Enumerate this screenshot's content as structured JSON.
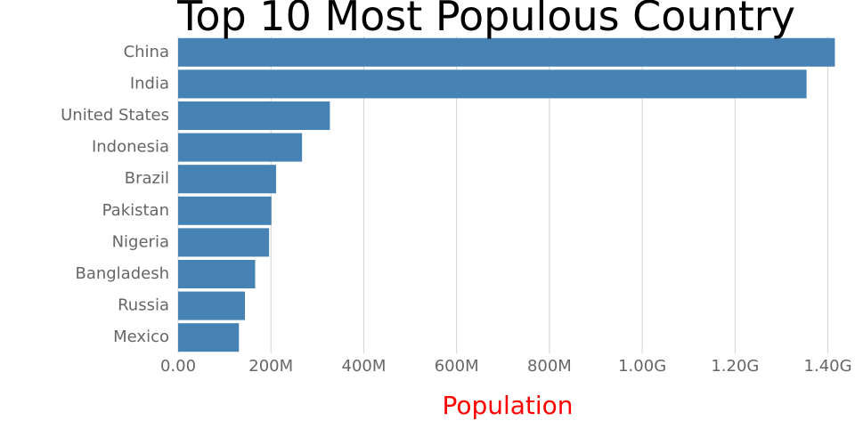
{
  "chart_data": {
    "type": "bar",
    "orientation": "horizontal",
    "title": "Top 10 Most Populous Country",
    "xlabel": "Population",
    "ylabel": "",
    "categories": [
      "China",
      "India",
      "United States",
      "Indonesia",
      "Brazil",
      "Pakistan",
      "Nigeria",
      "Bangladesh",
      "Russia",
      "Mexico"
    ],
    "values": [
      1415000000,
      1354000000,
      327000000,
      267000000,
      211000000,
      201000000,
      196000000,
      166000000,
      144000000,
      131000000
    ],
    "xlim": [
      0,
      1420000000
    ],
    "xticks": [
      0,
      200000000,
      400000000,
      600000000,
      800000000,
      1000000000,
      1200000000,
      1400000000
    ],
    "xtick_labels": [
      "0.00",
      "200M",
      "400M",
      "600M",
      "800M",
      "1.00G",
      "1.20G",
      "1.40G"
    ],
    "grid": "vertical",
    "legend": "none",
    "colors": {
      "bar": "#4682b4",
      "xlabel": "#ff0000",
      "grid": "#d3d3d3",
      "tick_text": "#666666",
      "title": "#000000"
    }
  }
}
